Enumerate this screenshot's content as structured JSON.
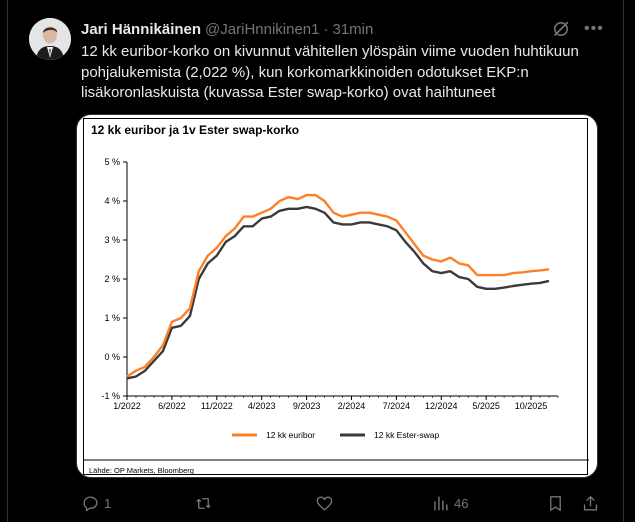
{
  "post": {
    "author_name": "Jari Hännikäinen",
    "author_handle": "@JariHnnikinen1",
    "separator": "·",
    "time": "31min",
    "text_lines": [
      "12 kk euribor-korko on kivunnut vähitellen ylöspäin viime vuoden huhtikuun",
      "pohjalukemista (2,022 %), kun korkomarkkinoiden odotukset EKP:n",
      "lisäkoronlaskuista (kuvassa Ester swap-korko) ovat haihtuneet"
    ]
  },
  "icons": {
    "grok": "grok-icon",
    "more": "more-icon",
    "reply": "reply-icon",
    "repost": "repost-icon",
    "like": "like-icon",
    "views": "views-icon",
    "bookmark": "bookmark-icon",
    "share": "share-icon"
  },
  "actions": {
    "reply_count": "1",
    "views_count": "46"
  },
  "colors": {
    "background": "#000000",
    "text": "#e7e9ea",
    "muted": "#71767b",
    "euribor": "#ff7f27",
    "ester": "#3a3a3a"
  },
  "chart_data": {
    "type": "line",
    "title": "12 kk euribor ja 1v Ester swap-korko",
    "source": "Lähde: OP Markets, Bloomberg",
    "x_tick_labels": [
      "1/2022",
      "6/2022",
      "11/2022",
      "4/2023",
      "9/2023",
      "2/2024",
      "7/2024",
      "12/2024",
      "5/2025",
      "10/2025"
    ],
    "y_tick_labels": [
      "5 %",
      "4 %",
      "3 %",
      "2 %",
      "1 %",
      "0 %",
      "-1 %"
    ],
    "xlim": [
      "2022-01",
      "2026-01"
    ],
    "ylim": [
      -1,
      5
    ],
    "grid": false,
    "legend_position": "bottom",
    "series": [
      {
        "name": "12 kk euribor",
        "color": "#ff7f27",
        "points": [
          [
            "2022-01",
            -0.5
          ],
          [
            "2022-02",
            -0.35
          ],
          [
            "2022-03",
            -0.25
          ],
          [
            "2022-04",
            0.0
          ],
          [
            "2022-05",
            0.3
          ],
          [
            "2022-06",
            0.9
          ],
          [
            "2022-07",
            1.0
          ],
          [
            "2022-08",
            1.25
          ],
          [
            "2022-09",
            2.2
          ],
          [
            "2022-10",
            2.6
          ],
          [
            "2022-11",
            2.8
          ],
          [
            "2022-12",
            3.1
          ],
          [
            "2023-01",
            3.3
          ],
          [
            "2023-02",
            3.6
          ],
          [
            "2023-03",
            3.6
          ],
          [
            "2023-04",
            3.7
          ],
          [
            "2023-05",
            3.8
          ],
          [
            "2023-06",
            4.0
          ],
          [
            "2023-07",
            4.1
          ],
          [
            "2023-08",
            4.05
          ],
          [
            "2023-09",
            4.15
          ],
          [
            "2023-10",
            4.15
          ],
          [
            "2023-11",
            4.0
          ],
          [
            "2023-12",
            3.7
          ],
          [
            "2024-01",
            3.6
          ],
          [
            "2024-02",
            3.65
          ],
          [
            "2024-03",
            3.7
          ],
          [
            "2024-04",
            3.7
          ],
          [
            "2024-05",
            3.65
          ],
          [
            "2024-06",
            3.6
          ],
          [
            "2024-07",
            3.5
          ],
          [
            "2024-08",
            3.2
          ],
          [
            "2024-09",
            2.9
          ],
          [
            "2024-10",
            2.6
          ],
          [
            "2024-11",
            2.5
          ],
          [
            "2024-12",
            2.45
          ],
          [
            "2025-01",
            2.55
          ],
          [
            "2025-02",
            2.4
          ],
          [
            "2025-03",
            2.35
          ],
          [
            "2025-04",
            2.1
          ],
          [
            "2025-05",
            2.1
          ],
          [
            "2025-06",
            2.1
          ],
          [
            "2025-07",
            2.1
          ],
          [
            "2025-08",
            2.15
          ],
          [
            "2025-09",
            2.17
          ],
          [
            "2025-10",
            2.2
          ],
          [
            "2025-11",
            2.22
          ],
          [
            "2025-12",
            2.25
          ]
        ]
      },
      {
        "name": "12 kk Ester-swap",
        "color": "#3a3a3a",
        "points": [
          [
            "2022-01",
            -0.55
          ],
          [
            "2022-02",
            -0.5
          ],
          [
            "2022-03",
            -0.35
          ],
          [
            "2022-04",
            -0.1
          ],
          [
            "2022-05",
            0.15
          ],
          [
            "2022-06",
            0.75
          ],
          [
            "2022-07",
            0.8
          ],
          [
            "2022-08",
            1.05
          ],
          [
            "2022-09",
            2.0
          ],
          [
            "2022-10",
            2.4
          ],
          [
            "2022-11",
            2.6
          ],
          [
            "2022-12",
            2.95
          ],
          [
            "2023-01",
            3.1
          ],
          [
            "2023-02",
            3.35
          ],
          [
            "2023-03",
            3.35
          ],
          [
            "2023-04",
            3.55
          ],
          [
            "2023-05",
            3.6
          ],
          [
            "2023-06",
            3.75
          ],
          [
            "2023-07",
            3.8
          ],
          [
            "2023-08",
            3.8
          ],
          [
            "2023-09",
            3.85
          ],
          [
            "2023-10",
            3.8
          ],
          [
            "2023-11",
            3.7
          ],
          [
            "2023-12",
            3.45
          ],
          [
            "2024-01",
            3.4
          ],
          [
            "2024-02",
            3.4
          ],
          [
            "2024-03",
            3.45
          ],
          [
            "2024-04",
            3.45
          ],
          [
            "2024-05",
            3.4
          ],
          [
            "2024-06",
            3.35
          ],
          [
            "2024-07",
            3.25
          ],
          [
            "2024-08",
            2.95
          ],
          [
            "2024-09",
            2.7
          ],
          [
            "2024-10",
            2.4
          ],
          [
            "2024-11",
            2.2
          ],
          [
            "2024-12",
            2.15
          ],
          [
            "2025-01",
            2.2
          ],
          [
            "2025-02",
            2.05
          ],
          [
            "2025-03",
            2.0
          ],
          [
            "2025-04",
            1.8
          ],
          [
            "2025-05",
            1.75
          ],
          [
            "2025-06",
            1.75
          ],
          [
            "2025-07",
            1.78
          ],
          [
            "2025-08",
            1.82
          ],
          [
            "2025-09",
            1.85
          ],
          [
            "2025-10",
            1.88
          ],
          [
            "2025-11",
            1.9
          ],
          [
            "2025-12",
            1.95
          ]
        ]
      }
    ]
  }
}
